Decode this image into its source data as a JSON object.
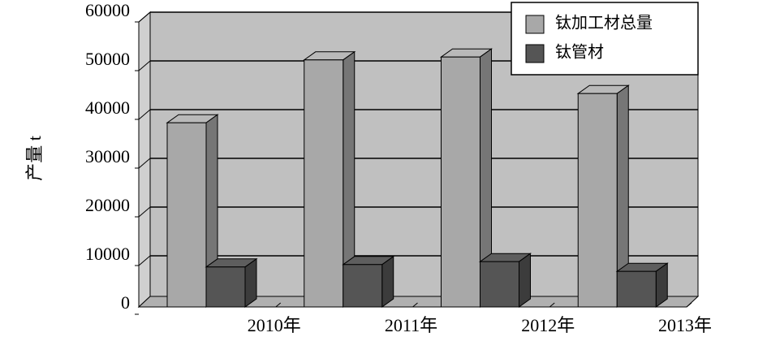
{
  "chart_data": {
    "type": "bar3d",
    "y_label": "产量 t",
    "categories": [
      "2010年",
      "2011年",
      "2012年",
      "2013年"
    ],
    "series": [
      {
        "name": "钛加工材总量",
        "color": "#a8a8a8",
        "values": [
          37800,
          50700,
          51300,
          43800
        ]
      },
      {
        "name": "钛管材",
        "color": "#555555",
        "values": [
          8200,
          8700,
          9300,
          7300
        ]
      }
    ],
    "ylim": [
      0,
      60000
    ],
    "yticks": [
      0,
      10000,
      20000,
      30000,
      40000,
      50000,
      60000
    ],
    "grid": true,
    "legend": "upper right"
  }
}
